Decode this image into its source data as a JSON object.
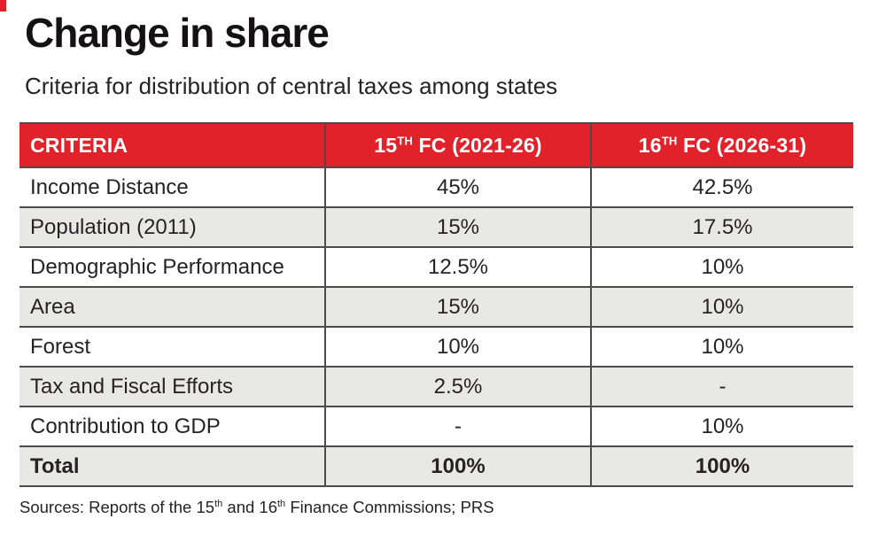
{
  "colors": {
    "accent_red": "#e2222b",
    "row_gray": "#e8e8e7",
    "line": "#4b4b4b",
    "text": "#272325"
  },
  "title": "Change in share",
  "subtitle": "Criteria for distribution of central taxes among states",
  "table": {
    "headers": [
      {
        "label": "CRITERIA"
      },
      {
        "prefix": "15",
        "sup": "TH",
        "rest": " FC (2021-26)"
      },
      {
        "prefix": "16",
        "sup": "TH",
        "rest": " FC (2026-31)"
      }
    ],
    "rows": [
      {
        "criteria": "Income Distance",
        "fc15": "45%",
        "fc16": "42.5%"
      },
      {
        "criteria": "Population (2011)",
        "fc15": "15%",
        "fc16": "17.5%"
      },
      {
        "criteria": "Demographic Performance",
        "fc15": "12.5%",
        "fc16": "10%"
      },
      {
        "criteria": "Area",
        "fc15": "15%",
        "fc16": "10%"
      },
      {
        "criteria": "Forest",
        "fc15": "10%",
        "fc16": "10%"
      },
      {
        "criteria": "Tax and Fiscal Efforts",
        "fc15": "2.5%",
        "fc16": "-"
      },
      {
        "criteria": "Contribution to GDP",
        "fc15": "-",
        "fc16": "10%"
      },
      {
        "criteria": "Total",
        "fc15": "100%",
        "fc16": "100%"
      }
    ]
  },
  "source": {
    "seg1": "Sources: Reports of the 15",
    "sup1": "th",
    "seg2": " and 16",
    "sup2": "th",
    "seg3": " Finance Commissions; PRS"
  },
  "chart_data": {
    "type": "table",
    "title": "Change in share",
    "subtitle": "Criteria for distribution of central taxes among states",
    "columns": [
      "CRITERIA",
      "15th FC (2021-26)",
      "16th FC (2026-31)"
    ],
    "rows": [
      [
        "Income Distance",
        "45%",
        "42.5%"
      ],
      [
        "Population (2011)",
        "15%",
        "17.5%"
      ],
      [
        "Demographic Performance",
        "12.5%",
        "10%"
      ],
      [
        "Area",
        "15%",
        "10%"
      ],
      [
        "Forest",
        "10%",
        "10%"
      ],
      [
        "Tax and Fiscal Efforts",
        "2.5%",
        "-"
      ],
      [
        "Contribution to GDP",
        "-",
        "10%"
      ],
      [
        "Total",
        "100%",
        "100%"
      ]
    ],
    "source": "Sources: Reports of the 15th and 16th Finance Commissions; PRS"
  }
}
